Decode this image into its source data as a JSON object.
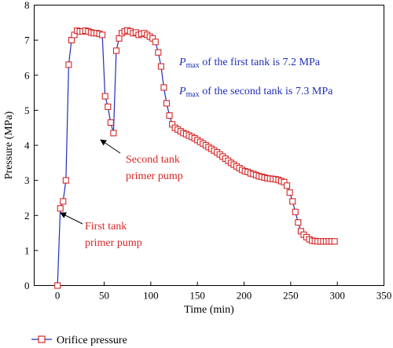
{
  "chart_data": {
    "type": "line",
    "xlabel": "Time (min)",
    "ylabel": "Pressure (MPa)",
    "xlim": [
      -25,
      350
    ],
    "ylim": [
      0,
      8
    ],
    "xticks": [
      0,
      50,
      100,
      150,
      200,
      250,
      300,
      350
    ],
    "yticks": [
      0,
      1,
      2,
      3,
      4,
      5,
      6,
      7,
      8
    ],
    "grid": false,
    "legend_position": "bottom-left",
    "colors": {
      "line": "#1f2fb8",
      "marker": "#d62828",
      "annotation_red": "#d62828",
      "annotation_blue": "#1f2fb8"
    },
    "series": [
      {
        "name": "Orifice pressure",
        "x": [
          0,
          3,
          6,
          9,
          12,
          15,
          18,
          21,
          24,
          27,
          30,
          33,
          36,
          39,
          42,
          45,
          48,
          51,
          54,
          57,
          60,
          63,
          66,
          69,
          72,
          75,
          78,
          81,
          84,
          87,
          90,
          93,
          96,
          99,
          102,
          105,
          108,
          111,
          114,
          117,
          120,
          123,
          126,
          129,
          132,
          135,
          138,
          141,
          144,
          147,
          150,
          153,
          156,
          159,
          162,
          165,
          168,
          171,
          174,
          177,
          180,
          183,
          186,
          189,
          192,
          195,
          198,
          201,
          204,
          207,
          210,
          213,
          216,
          219,
          222,
          225,
          228,
          231,
          234,
          237,
          240,
          243,
          246,
          249,
          252,
          255,
          258,
          261,
          264,
          267,
          270,
          273,
          276,
          279,
          282,
          285,
          288,
          291,
          294,
          297
        ],
        "y": [
          0.0,
          2.2,
          2.4,
          3.0,
          6.3,
          7.0,
          7.15,
          7.27,
          7.25,
          7.25,
          7.27,
          7.25,
          7.22,
          7.2,
          7.2,
          7.18,
          7.15,
          5.4,
          5.1,
          4.65,
          4.35,
          6.7,
          7.05,
          7.2,
          7.25,
          7.28,
          7.25,
          7.2,
          7.22,
          7.15,
          7.18,
          7.2,
          7.15,
          7.1,
          7.05,
          6.95,
          6.65,
          6.25,
          5.65,
          5.2,
          4.85,
          4.6,
          4.5,
          4.45,
          4.4,
          4.35,
          4.32,
          4.28,
          4.24,
          4.2,
          4.15,
          4.1,
          4.05,
          4.0,
          3.95,
          3.9,
          3.85,
          3.8,
          3.74,
          3.68,
          3.62,
          3.56,
          3.5,
          3.45,
          3.4,
          3.35,
          3.3,
          3.26,
          3.24,
          3.2,
          3.18,
          3.15,
          3.12,
          3.1,
          3.08,
          3.06,
          3.05,
          3.04,
          3.03,
          3.01,
          2.98,
          2.95,
          2.85,
          2.65,
          2.4,
          2.1,
          1.8,
          1.55,
          1.45,
          1.38,
          1.32,
          1.28,
          1.27,
          1.26,
          1.26,
          1.26,
          1.26,
          1.26,
          1.26,
          1.26
        ]
      }
    ],
    "annotations": {
      "first_tank": [
        "First tank",
        "primer pump"
      ],
      "second_tank": [
        "Second tank",
        "primer pump"
      ],
      "pmax_symbol": "P",
      "pmax_sub": "max",
      "pmax_first_rest": " of the first tank is 7.2 MPa",
      "pmax_second_rest": " of the second tank is 7.3 MPa"
    }
  }
}
